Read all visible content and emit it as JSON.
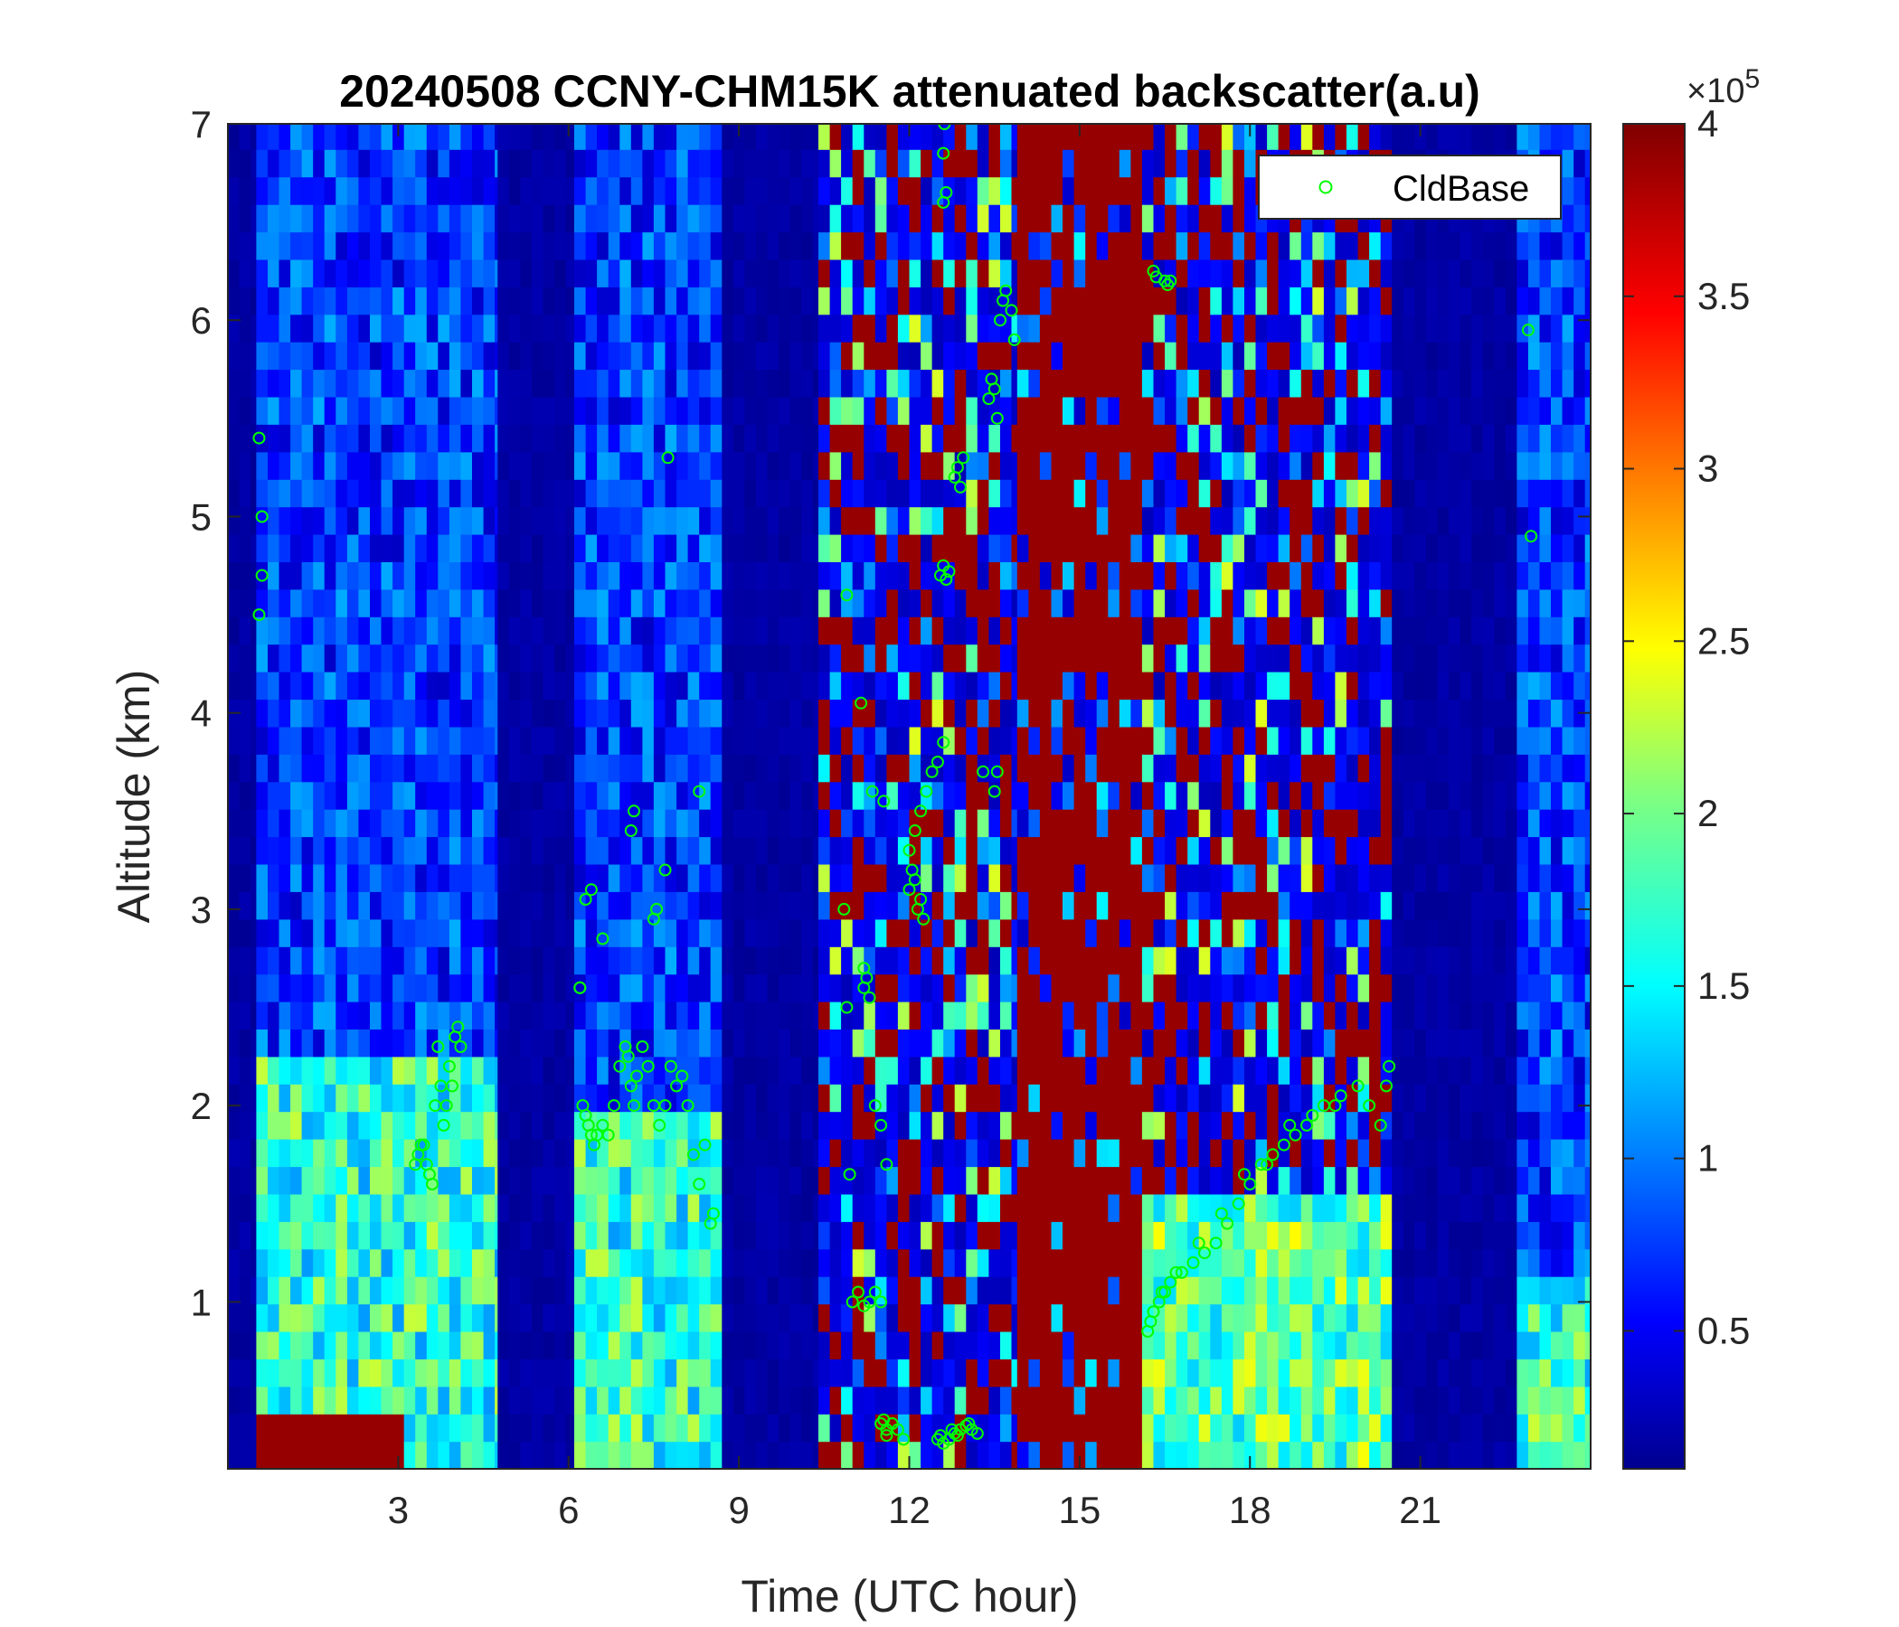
{
  "chart_data": {
    "type": "heatmap",
    "title": "20240508 CCNY-CHM15K attenuated backscatter(a.u)",
    "xlabel": "Time (UTC hour)",
    "ylabel": "Altitude (km)",
    "xlim": [
      0,
      24
    ],
    "ylim": [
      0.15,
      7
    ],
    "xticks": [
      3,
      6,
      9,
      12,
      15,
      18,
      21
    ],
    "yticks": [
      1,
      2,
      3,
      4,
      5,
      6,
      7
    ],
    "colorbar": {
      "colormap": "jet",
      "range": [
        0.1,
        4
      ],
      "ticks": [
        0.5,
        1,
        1.5,
        2,
        2.5,
        3,
        3.5,
        4
      ],
      "tick_labels": [
        "0.5",
        "1",
        "1.5",
        "2",
        "2.5",
        "3",
        "3.5",
        "4"
      ],
      "multiplier_prefix": "×10",
      "multiplier_exponent": "5"
    },
    "grid": false,
    "legend": {
      "position": "top-right",
      "entries": [
        {
          "name": "CldBase",
          "marker": "circle",
          "color": "#00ff00"
        }
      ]
    },
    "regions": [
      {
        "x": [
          0.0,
          0.5
        ],
        "type": "dark"
      },
      {
        "x": [
          0.5,
          4.75
        ],
        "type": "signal",
        "boundary_layer_top": 2.2,
        "surface_red": [
          0.5,
          3.0
        ]
      },
      {
        "x": [
          4.75,
          6.1
        ],
        "type": "dark"
      },
      {
        "x": [
          6.1,
          8.7
        ],
        "type": "signal",
        "boundary_layer_top": 2.0
      },
      {
        "x": [
          8.7,
          10.4
        ],
        "type": "dark"
      },
      {
        "x": [
          10.4,
          13.9
        ],
        "type": "noise"
      },
      {
        "x": [
          13.9,
          16.1
        ],
        "type": "saturated"
      },
      {
        "x": [
          16.1,
          20.5
        ],
        "type": "noise",
        "boundary_layer_top": 1.6
      },
      {
        "x": [
          20.5,
          22.7
        ],
        "type": "dark"
      },
      {
        "x": [
          22.7,
          24.0
        ],
        "type": "signal",
        "boundary_layer_top": 1.2
      }
    ],
    "series": [
      {
        "name": "CldBase",
        "x": [
          0.55,
          0.6,
          0.6,
          0.55,
          3.3,
          3.35,
          3.45,
          3.55,
          3.6,
          3.7,
          3.75,
          3.8,
          3.85,
          3.9,
          4.0,
          4.05,
          4.1,
          3.4,
          3.5,
          3.65,
          3.95,
          6.2,
          6.25,
          6.3,
          6.35,
          6.4,
          6.45,
          6.5,
          6.6,
          6.7,
          6.8,
          6.9,
          7.0,
          7.05,
          7.1,
          7.15,
          7.2,
          7.3,
          7.4,
          7.5,
          7.6,
          7.7,
          7.8,
          7.9,
          8.0,
          8.1,
          8.2,
          8.3,
          8.4,
          8.5,
          8.55,
          6.3,
          7.1,
          7.15,
          7.5,
          7.55,
          8.3,
          6.2,
          6.4,
          6.6,
          7.7,
          7.75,
          10.85,
          10.9,
          10.95,
          11.0,
          11.1,
          11.2,
          11.3,
          11.4,
          11.5,
          11.6,
          11.7,
          11.2,
          11.3,
          11.4,
          11.5,
          11.6,
          11.35,
          11.55,
          11.6,
          11.8,
          11.9,
          12.0,
          12.1,
          12.2,
          12.3,
          12.4,
          12.5,
          12.6,
          12.0,
          12.05,
          12.1,
          12.15,
          12.2,
          12.25,
          11.5,
          11.55,
          11.2,
          11.25,
          12.5,
          12.55,
          12.6,
          12.7,
          12.75,
          12.8,
          12.85,
          12.9,
          13.0,
          13.05,
          13.1,
          13.2,
          13.3,
          12.8,
          12.85,
          12.9,
          12.95,
          13.4,
          13.45,
          13.5,
          13.55,
          13.6,
          13.65,
          13.7,
          13.8,
          13.85,
          13.5,
          13.55,
          12.55,
          12.6,
          12.65,
          12.7,
          12.6,
          12.65,
          12.6,
          12.62,
          11.15,
          10.9,
          16.2,
          16.3,
          16.4,
          16.5,
          16.6,
          16.8,
          17.0,
          17.2,
          17.4,
          17.6,
          17.8,
          18.0,
          18.2,
          18.4,
          18.6,
          18.8,
          19.0,
          19.3,
          19.6,
          19.9,
          20.1,
          20.3,
          20.4,
          20.45,
          16.25,
          16.45,
          16.7,
          17.1,
          17.5,
          17.9,
          18.3,
          18.7,
          19.1,
          19.5,
          16.3,
          16.35,
          16.5,
          16.55,
          16.6,
          22.9,
          22.95
        ],
        "y": [
          5.4,
          5.0,
          4.7,
          4.5,
          1.7,
          1.75,
          1.8,
          1.65,
          1.6,
          2.3,
          2.1,
          1.9,
          2.0,
          2.2,
          2.35,
          2.4,
          2.3,
          1.8,
          1.7,
          2.0,
          2.1,
          2.6,
          2.0,
          1.95,
          1.9,
          1.85,
          1.8,
          1.85,
          1.9,
          1.85,
          2.0,
          2.2,
          2.3,
          2.25,
          2.1,
          2.0,
          2.15,
          2.3,
          2.2,
          2.0,
          1.9,
          2.0,
          2.2,
          2.1,
          2.15,
          2.0,
          1.75,
          1.6,
          1.8,
          1.4,
          1.45,
          3.05,
          3.4,
          3.5,
          2.95,
          3.0,
          3.6,
          2.6,
          3.1,
          2.85,
          3.2,
          5.3,
          3.0,
          2.5,
          1.65,
          1.0,
          1.05,
          0.98,
          1.0,
          1.05,
          1.0,
          0.35,
          0.38,
          2.6,
          2.55,
          2.0,
          1.9,
          1.7,
          3.6,
          3.55,
          0.32,
          0.35,
          0.3,
          3.3,
          3.4,
          3.5,
          3.6,
          3.7,
          3.75,
          3.85,
          3.1,
          3.2,
          3.15,
          3.0,
          3.05,
          2.95,
          0.38,
          0.4,
          2.7,
          2.65,
          0.3,
          0.32,
          0.28,
          0.3,
          0.35,
          0.33,
          0.32,
          0.35,
          0.37,
          0.38,
          0.35,
          0.33,
          3.7,
          5.2,
          5.25,
          5.15,
          5.3,
          5.6,
          5.7,
          5.65,
          5.5,
          6.0,
          6.1,
          6.15,
          6.05,
          5.9,
          3.6,
          3.7,
          4.7,
          4.75,
          4.68,
          4.72,
          6.6,
          6.65,
          6.85,
          7.0,
          4.05,
          4.6,
          0.85,
          0.95,
          1.0,
          1.05,
          1.1,
          1.15,
          1.2,
          1.25,
          1.3,
          1.4,
          1.5,
          1.6,
          1.7,
          1.75,
          1.8,
          1.85,
          1.9,
          2.0,
          2.05,
          2.1,
          2.0,
          1.9,
          2.1,
          2.2,
          0.9,
          1.05,
          1.15,
          1.3,
          1.45,
          1.65,
          1.7,
          1.9,
          1.95,
          2.0,
          6.25,
          6.22,
          6.2,
          6.18,
          6.2,
          5.95,
          4.9
        ]
      }
    ]
  }
}
